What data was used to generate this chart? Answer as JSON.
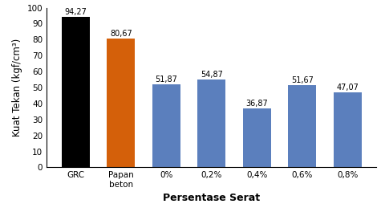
{
  "categories": [
    "GRC",
    "Papan\nbeton",
    "0%",
    "0,2%",
    "0,4%",
    "0,6%",
    "0,8%"
  ],
  "values": [
    94.27,
    80.67,
    51.87,
    54.87,
    36.87,
    51.67,
    47.07
  ],
  "bar_colors": [
    "#000000",
    "#d4600a",
    "#5b7fbd",
    "#5b7fbd",
    "#5b7fbd",
    "#5b7fbd",
    "#5b7fbd"
  ],
  "labels": [
    "94,27",
    "80,67",
    "51,87",
    "54,87",
    "36,87",
    "51,67",
    "47,07"
  ],
  "ylabel": "Kuat Tekan (kgf/cm³)",
  "xlabel": "Persentase Serat",
  "ylim": [
    0,
    100
  ],
  "yticks": [
    0,
    10,
    20,
    30,
    40,
    50,
    60,
    70,
    80,
    90,
    100
  ],
  "label_fontsize": 7.0,
  "ylabel_fontsize": 8.5,
  "xlabel_fontsize": 9.0,
  "tick_fontsize": 7.5,
  "bar_width": 0.62
}
